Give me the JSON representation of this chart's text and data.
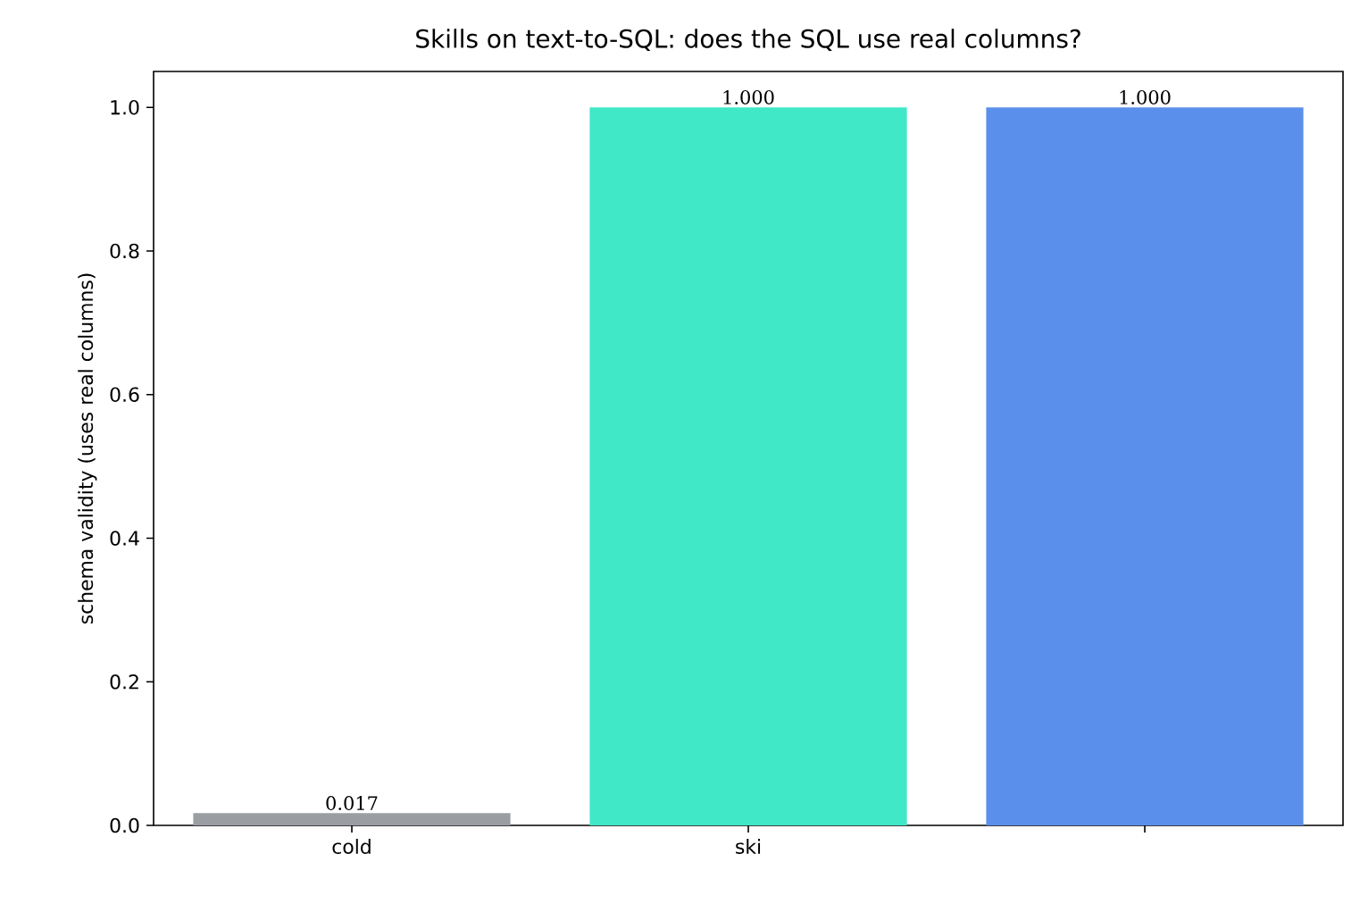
{
  "chart_data": {
    "type": "bar",
    "title": "Skills on text-to-SQL: does the SQL use real columns?",
    "ylabel": "schema validity (uses real columns)",
    "categories": [
      "cold",
      "ski",
      null
    ],
    "values": [
      0.017,
      1.0,
      1.0
    ],
    "colors": [
      "#9a9ea3",
      "#40e8c8",
      "#5b8fec"
    ],
    "value_labels": [
      "0.017",
      "1.000",
      "1.000"
    ],
    "ylim": [
      0,
      1.05
    ],
    "yticks": [
      {
        "value": 0,
        "label": "0.0"
      },
      0.2,
      0.4,
      0.6,
      0.8,
      {
        "value": 1,
        "label": "1.0"
      }
    ],
    "grid": false
  }
}
